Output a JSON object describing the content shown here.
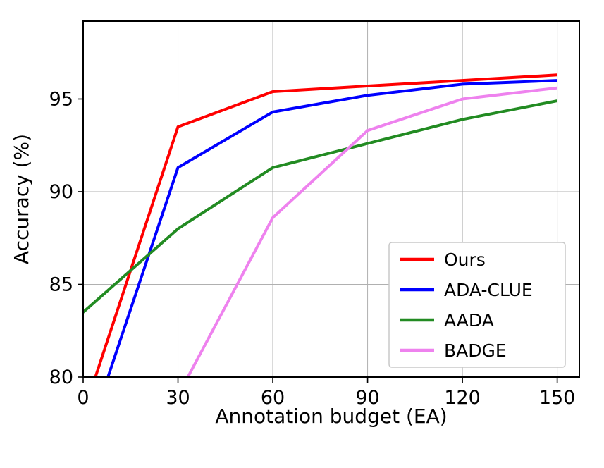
{
  "figure": {
    "background": "#ffffff"
  },
  "chart_data": {
    "type": "line",
    "x": [
      0,
      30,
      60,
      90,
      120,
      150
    ],
    "series": [
      {
        "name": "Ours",
        "color": "#ff0000",
        "values": [
          78.0,
          93.5,
          95.4,
          95.7,
          96.0,
          96.3
        ]
      },
      {
        "name": "ADA-CLUE",
        "color": "#0000ff",
        "values": [
          76.0,
          91.3,
          94.3,
          95.2,
          95.8,
          96.0
        ]
      },
      {
        "name": "AADA",
        "color": "#228b22",
        "values": [
          83.5,
          88.0,
          91.3,
          92.6,
          93.9,
          94.9
        ]
      },
      {
        "name": "BADGE",
        "color": "#ee82ee",
        "values": [
          75.0,
          79.0,
          88.6,
          93.3,
          95.0,
          95.6
        ]
      }
    ],
    "title": "",
    "xlabel": "Annotation budget (EA)",
    "ylabel": "Accuracy (%)",
    "xticks": [
      0,
      30,
      60,
      90,
      120,
      150
    ],
    "yticks": [
      80,
      85,
      90,
      95
    ],
    "xlim": [
      0,
      157
    ],
    "ylim": [
      80,
      99.2
    ],
    "grid": true,
    "legend": {
      "position": "lower right",
      "entries": [
        "Ours",
        "ADA-CLUE",
        "AADA",
        "BADGE"
      ]
    }
  },
  "style": {
    "grid_color": "#b0b0b0",
    "axis_color": "#000000",
    "line_width": 4,
    "legend_border_color": "#c8c8c8",
    "legend_background": "#ffffff",
    "tick_font_size": 27,
    "label_font_size": 28,
    "legend_font_size": 25
  }
}
